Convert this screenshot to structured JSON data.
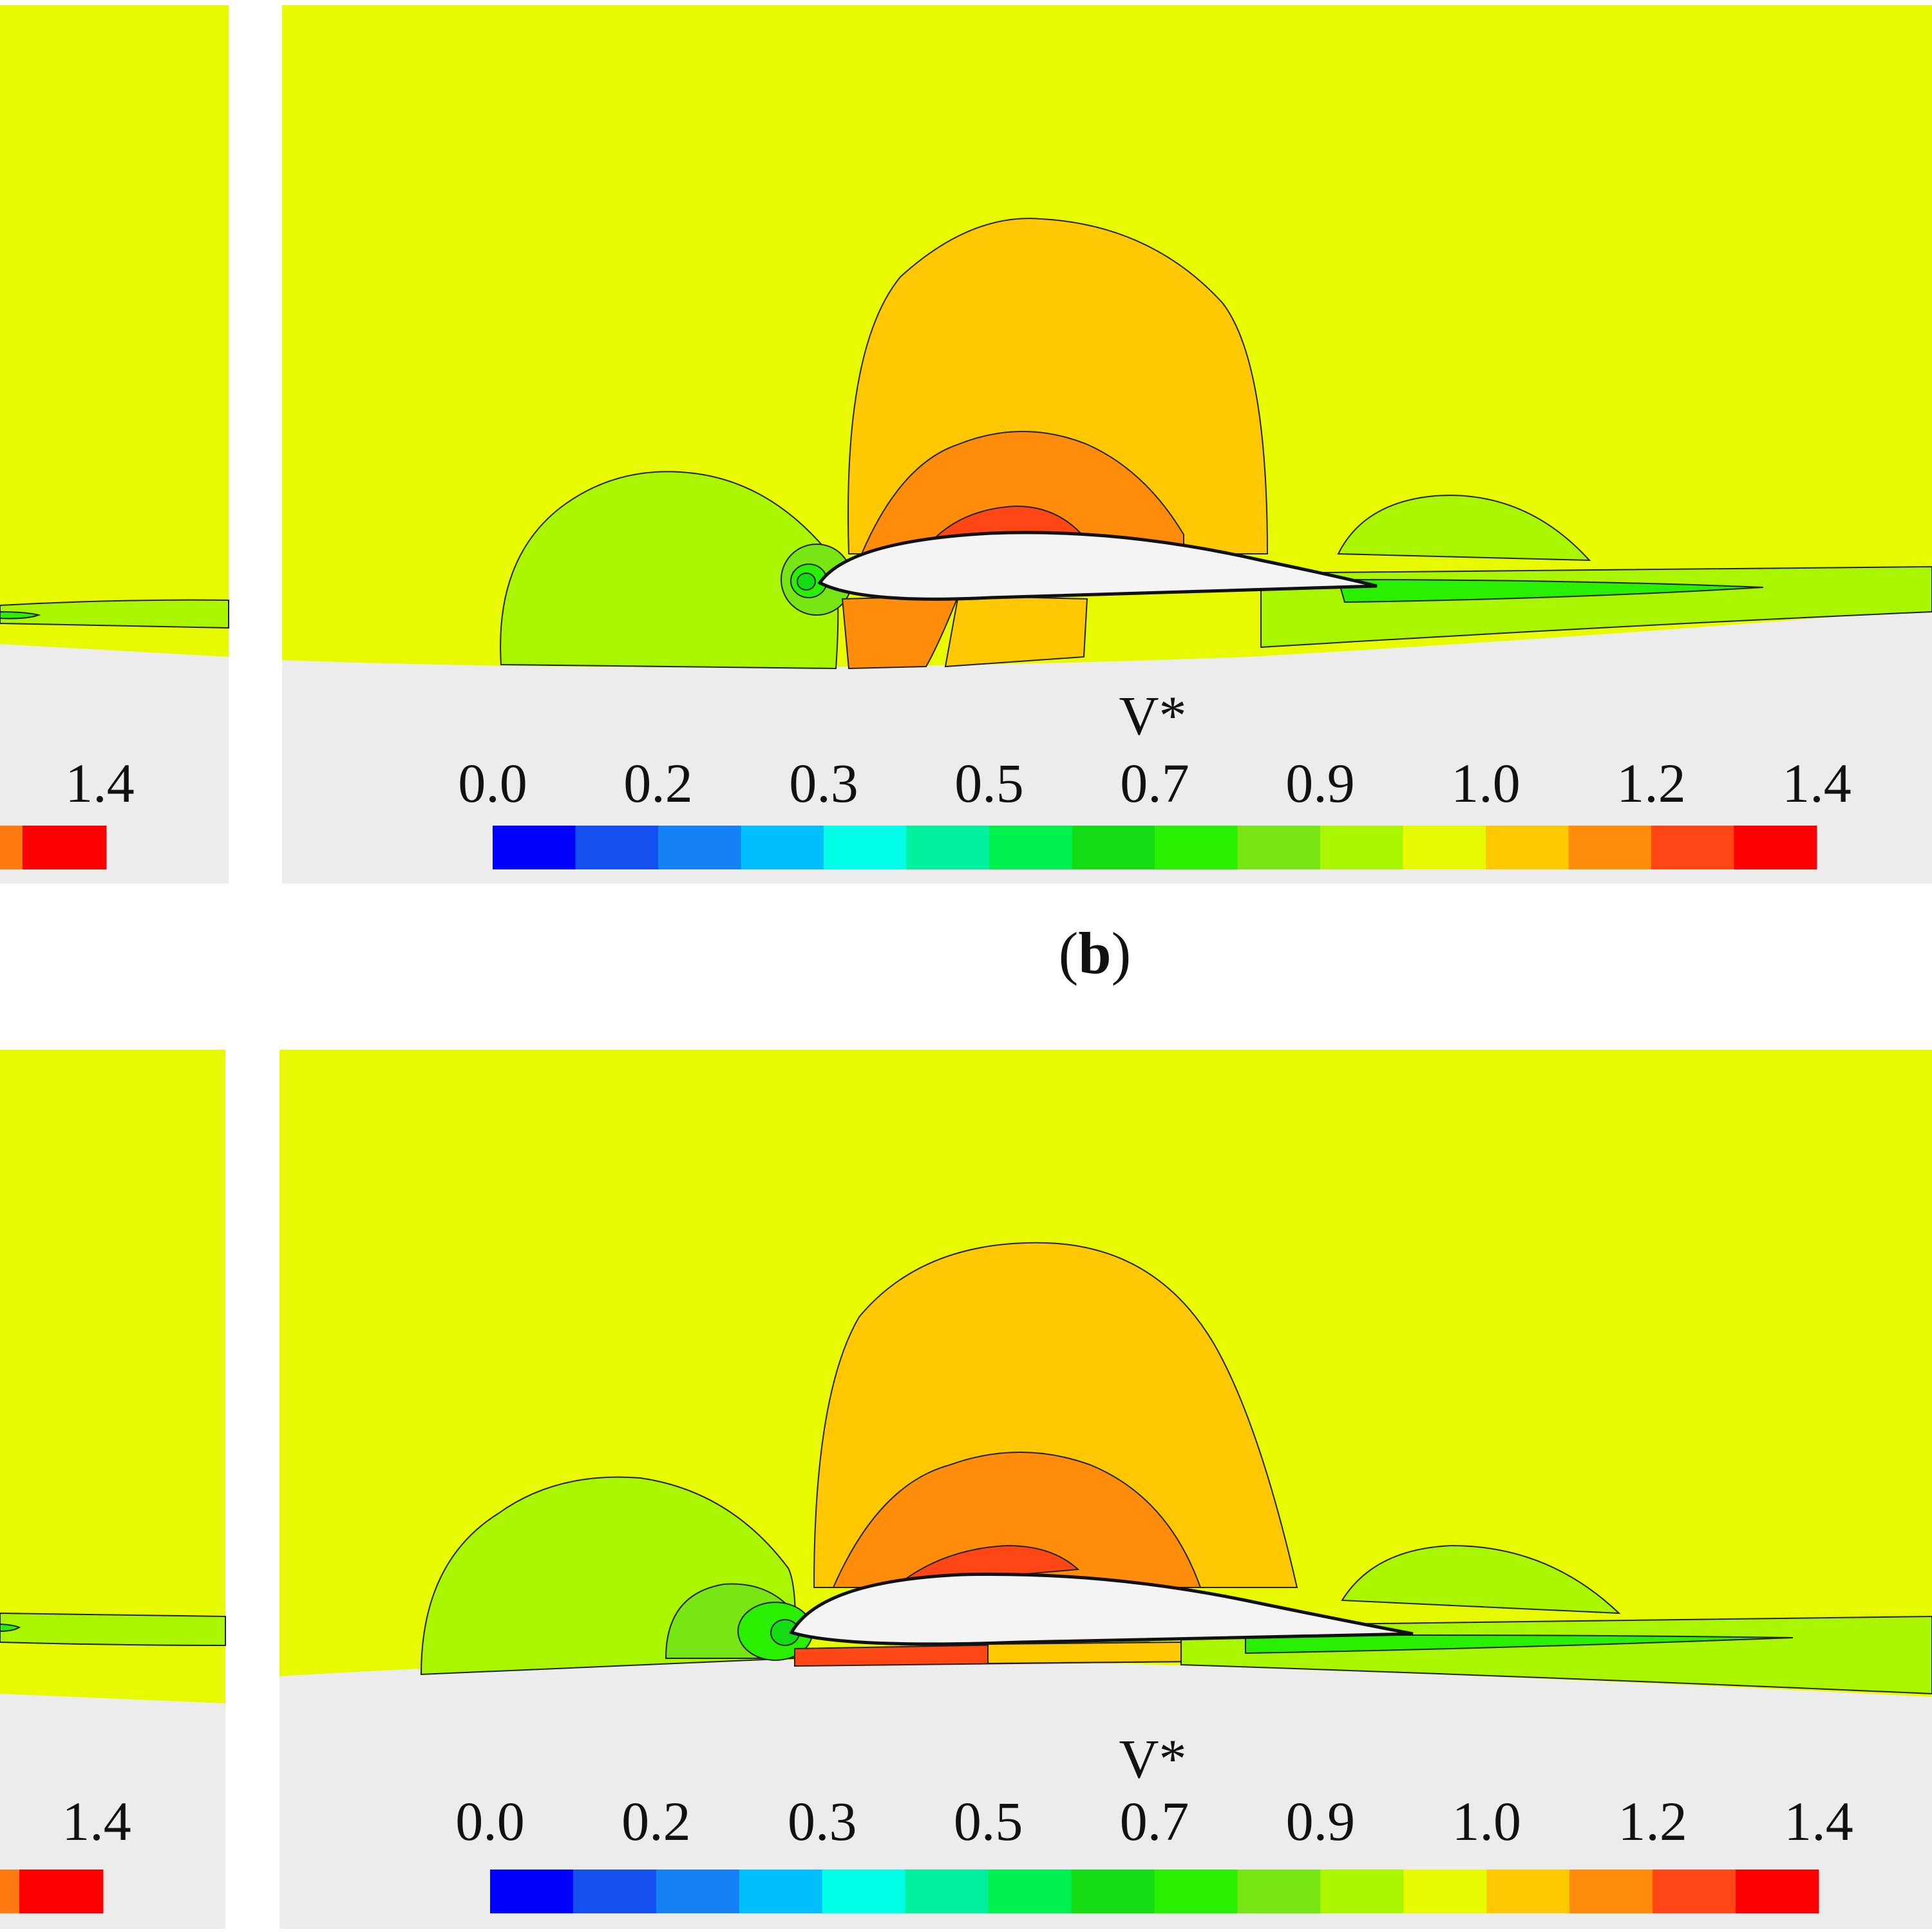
{
  "caption": {
    "open": "(",
    "letter": "b",
    "close": ")"
  },
  "colors": {
    "freestream": "#e8fa00",
    "ground": "#ececec",
    "airfoil": "#f4f4f4",
    "contour_line": "#222222"
  },
  "chart_data": [
    {
      "type": "heatmap",
      "panel": "left-top (partially visible)",
      "variable": "V*",
      "colorbar_tick_labels": [
        "1.4"
      ],
      "visible_colors": [
        "#ff7a10",
        "#ff0000"
      ]
    },
    {
      "type": "heatmap",
      "panel": "right-top",
      "variable": "V*",
      "title": "V*",
      "colorbar_tick_labels": [
        "0.0",
        "0.2",
        "0.3",
        "0.5",
        "0.7",
        "0.9",
        "1.0",
        "1.2",
        "1.4"
      ],
      "colorbar_range": [
        0.0,
        1.4
      ],
      "colorbar_colors": [
        "#0000ff",
        "#1450f0",
        "#1482f5",
        "#00beff",
        "#00ffe6",
        "#00f0a0",
        "#00f050",
        "#14dc14",
        "#28f000",
        "#78e614",
        "#aaf500",
        "#e6fa00",
        "#ffc800",
        "#ff8c0a",
        "#ff4614",
        "#ff0000"
      ]
    },
    {
      "type": "heatmap",
      "panel": "left-bottom (partially visible)",
      "variable": "V*",
      "colorbar_tick_labels": [
        "1.4"
      ],
      "visible_colors": [
        "#ff7a10",
        "#ff0000"
      ]
    },
    {
      "type": "heatmap",
      "panel": "right-bottom",
      "variable": "V*",
      "title": "V*",
      "colorbar_tick_labels": [
        "0.0",
        "0.2",
        "0.3",
        "0.5",
        "0.7",
        "0.9",
        "1.0",
        "1.2",
        "1.4"
      ],
      "colorbar_range": [
        0.0,
        1.4
      ],
      "colorbar_colors": [
        "#0000ff",
        "#1450f0",
        "#1482f5",
        "#00beff",
        "#00ffe6",
        "#00f0a0",
        "#00f050",
        "#14dc14",
        "#28f000",
        "#78e614",
        "#aaf500",
        "#e6fa00",
        "#ffc800",
        "#ff8c0a",
        "#ff4614",
        "#ff0000"
      ]
    }
  ]
}
